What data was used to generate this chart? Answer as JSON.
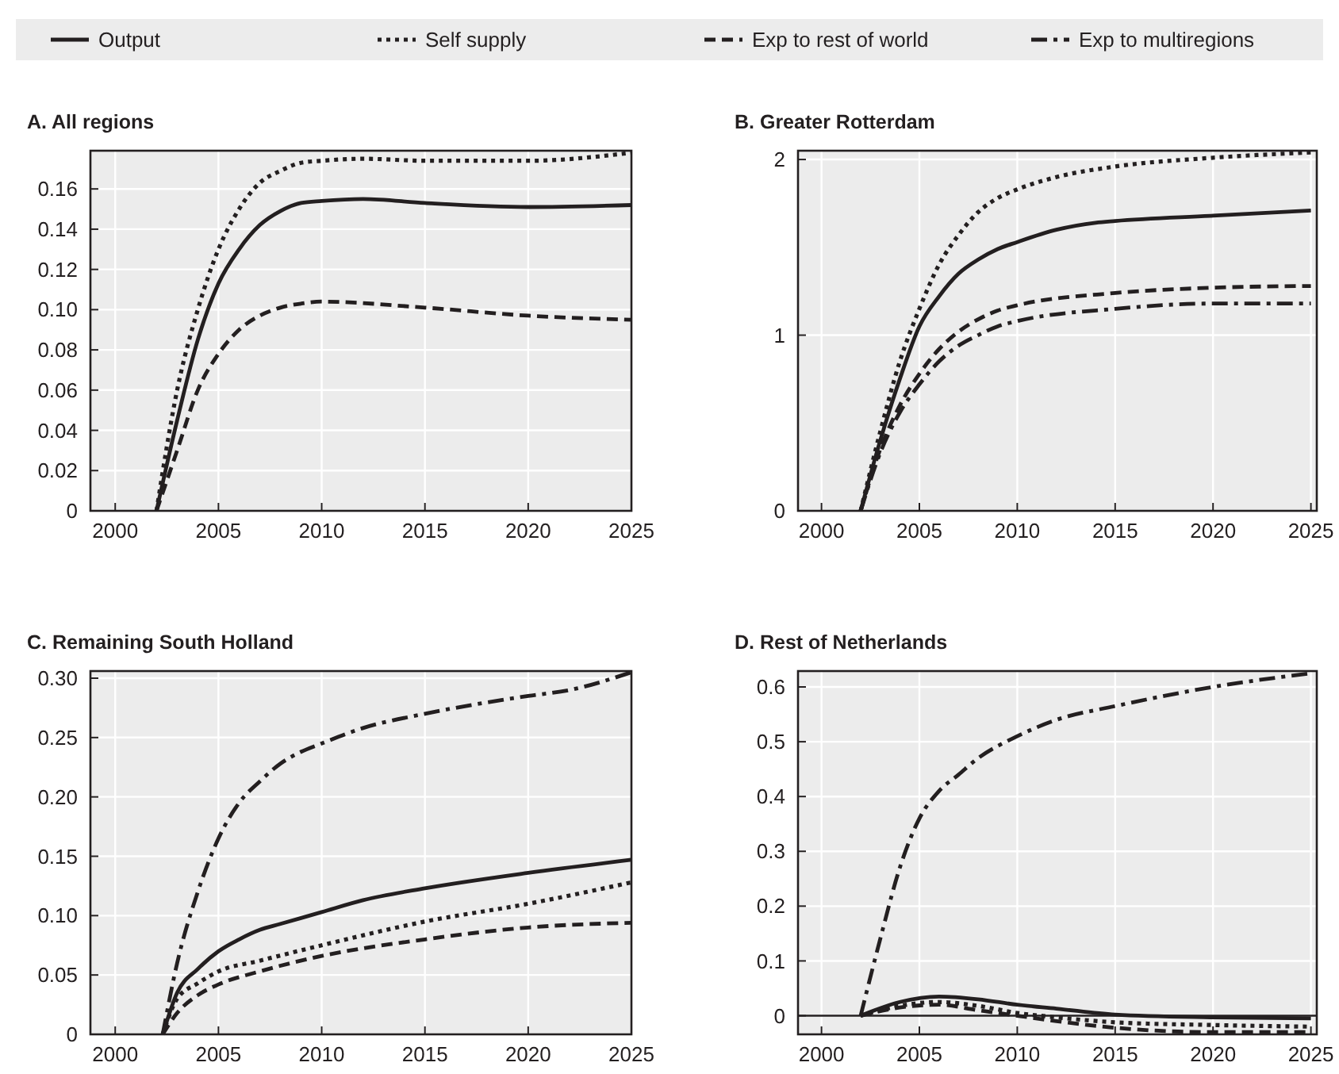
{
  "chart_data": [
    {
      "type": "line",
      "title": "A.   All regions",
      "xlim": [
        1998.8,
        2025
      ],
      "xticks": [
        2000,
        2005,
        2010,
        2015,
        2020,
        2025
      ],
      "ylim": [
        0,
        0.179
      ],
      "yticks": [
        {
          "value": 0,
          "label": "0"
        },
        {
          "value": 0.02,
          "label": "0.02"
        },
        {
          "value": 0.04,
          "label": "0.04"
        },
        {
          "value": 0.06,
          "label": "0.06"
        },
        {
          "value": 0.08,
          "label": "0.08"
        },
        {
          "value": 0.1,
          "label": "0.10"
        },
        {
          "value": 0.12,
          "label": "0.12"
        },
        {
          "value": 0.14,
          "label": "0.14"
        },
        {
          "value": 0.16,
          "label": "0.16"
        }
      ],
      "grid": true,
      "series": [
        {
          "color": "#231f20",
          "line_style": "solid",
          "x": [
            2002,
            2003,
            2004,
            2005,
            2006,
            2007,
            2008,
            2009,
            2010,
            2012,
            2015,
            2020,
            2025
          ],
          "values": [
            0,
            0.045,
            0.085,
            0.113,
            0.13,
            0.142,
            0.149,
            0.153,
            0.154,
            0.155,
            0.153,
            0.151,
            0.152
          ]
        },
        {
          "color": "#231f20",
          "line_style": "dotted",
          "x": [
            2002,
            2003,
            2004,
            2005,
            2006,
            2007,
            2008,
            2009,
            2010,
            2012,
            2015,
            2020,
            2025
          ],
          "values": [
            0,
            0.06,
            0.1,
            0.13,
            0.15,
            0.163,
            0.169,
            0.173,
            0.174,
            0.175,
            0.174,
            0.174,
            0.178
          ]
        },
        {
          "color": "#231f20",
          "line_style": "dashed",
          "x": [
            2002,
            2003,
            2004,
            2005,
            2006,
            2007,
            2008,
            2009,
            2010,
            2015,
            2020,
            2025
          ],
          "values": [
            0,
            0.03,
            0.06,
            0.078,
            0.09,
            0.097,
            0.101,
            0.103,
            0.104,
            0.101,
            0.097,
            0.095
          ]
        }
      ]
    },
    {
      "type": "line",
      "title": "B.   Greater Rotterdam",
      "xlim": [
        1998.8,
        2025.3
      ],
      "xticks": [
        2000,
        2005,
        2010,
        2015,
        2020,
        2025
      ],
      "ylim": [
        0,
        2.05
      ],
      "yticks": [
        0,
        1,
        2
      ],
      "grid": true,
      "legend": "top",
      "series": [
        {
          "name": "Output",
          "color": "#231f20",
          "line_style": "solid",
          "x": [
            2002,
            2003,
            2004,
            2005,
            2006,
            2007,
            2008,
            2009,
            2010,
            2012,
            2014,
            2015,
            2020,
            2025
          ],
          "values": [
            0,
            0.4,
            0.75,
            1.05,
            1.22,
            1.35,
            1.43,
            1.49,
            1.53,
            1.6,
            1.64,
            1.65,
            1.68,
            1.71
          ]
        },
        {
          "name": "Self supply",
          "color": "#231f20",
          "line_style": "dotted",
          "x": [
            2002,
            2003,
            2004,
            2005,
            2006,
            2007,
            2008,
            2009,
            2010,
            2012,
            2015,
            2020,
            2025
          ],
          "values": [
            0,
            0.45,
            0.85,
            1.15,
            1.4,
            1.57,
            1.7,
            1.78,
            1.83,
            1.9,
            1.96,
            2.01,
            2.04
          ]
        },
        {
          "name": "Exp to rest of world",
          "color": "#231f20",
          "line_style": "dashed",
          "x": [
            2002,
            2003,
            2004,
            2005,
            2006,
            2007,
            2008,
            2009,
            2010,
            2015,
            2020,
            2025
          ],
          "values": [
            0,
            0.35,
            0.6,
            0.78,
            0.92,
            1.02,
            1.09,
            1.14,
            1.17,
            1.24,
            1.27,
            1.28
          ]
        },
        {
          "name": "Exp to multiregions",
          "color": "#231f20",
          "line_style": "dashdot",
          "x": [
            2002,
            2003,
            2004,
            2005,
            2006,
            2007,
            2008,
            2009,
            2010,
            2015,
            2020,
            2025
          ],
          "values": [
            0,
            0.33,
            0.56,
            0.72,
            0.85,
            0.94,
            1.0,
            1.05,
            1.08,
            1.15,
            1.18,
            1.18
          ]
        }
      ]
    },
    {
      "type": "line",
      "title": "C.   Remaining South Holland",
      "xlim": [
        1998.8,
        2025
      ],
      "xticks": [
        2000,
        2005,
        2010,
        2015,
        2020,
        2025
      ],
      "ylim": [
        0,
        0.306
      ],
      "yticks": [
        {
          "value": 0,
          "label": "0"
        },
        {
          "value": 0.05,
          "label": "0.05"
        },
        {
          "value": 0.1,
          "label": "0.10"
        },
        {
          "value": 0.15,
          "label": "0.15"
        },
        {
          "value": 0.2,
          "label": "0.20"
        },
        {
          "value": 0.25,
          "label": "0.25"
        },
        {
          "value": 0.3,
          "label": "0.30"
        }
      ],
      "grid": true,
      "series": [
        {
          "color": "#231f20",
          "line_style": "solid",
          "x": [
            2002.3,
            2003,
            2004,
            2005,
            2006,
            2007,
            2008,
            2010,
            2012,
            2015,
            2020,
            2025
          ],
          "values": [
            0,
            0.035,
            0.055,
            0.07,
            0.08,
            0.088,
            0.093,
            0.103,
            0.113,
            0.123,
            0.136,
            0.147
          ]
        },
        {
          "color": "#231f20",
          "line_style": "dotted",
          "x": [
            2002.3,
            2003,
            2004,
            2005,
            2007,
            2010,
            2015,
            2020,
            2025
          ],
          "values": [
            0,
            0.03,
            0.043,
            0.053,
            0.062,
            0.075,
            0.095,
            0.11,
            0.128
          ]
        },
        {
          "color": "#231f20",
          "line_style": "dashed",
          "x": [
            2002.3,
            2003,
            2004,
            2005,
            2007,
            2010,
            2015,
            2020,
            2025
          ],
          "values": [
            0,
            0.018,
            0.033,
            0.042,
            0.053,
            0.066,
            0.08,
            0.09,
            0.094
          ]
        },
        {
          "color": "#231f20",
          "line_style": "dashdot",
          "x": [
            2002.3,
            2003,
            2004,
            2005,
            2006,
            2007,
            2008,
            2009,
            2010,
            2012,
            2015,
            2020,
            2022,
            2025
          ],
          "values": [
            0,
            0.06,
            0.12,
            0.165,
            0.195,
            0.213,
            0.228,
            0.238,
            0.245,
            0.258,
            0.27,
            0.285,
            0.29,
            0.305
          ]
        }
      ]
    },
    {
      "type": "line",
      "title": "D.   Rest of Netherlands",
      "xlim": [
        1998.8,
        2025.3
      ],
      "xticks": [
        2000,
        2005,
        2010,
        2015,
        2020,
        2025
      ],
      "ylim": [
        -0.034,
        0.629
      ],
      "yticks": [
        0,
        0.1,
        0.2,
        0.3,
        0.4,
        0.5,
        0.6
      ],
      "grid": true,
      "ref_lines": [
        {
          "axis": "y",
          "value": 0,
          "color": "#231f20"
        }
      ],
      "series": [
        {
          "color": "#231f20",
          "line_style": "solid",
          "x": [
            2002,
            2004,
            2006,
            2008,
            2010,
            2012,
            2015,
            2020,
            2025
          ],
          "values": [
            0,
            0.025,
            0.035,
            0.03,
            0.02,
            0.013,
            0.002,
            -0.003,
            -0.005
          ]
        },
        {
          "color": "#231f20",
          "line_style": "dotted",
          "x": [
            2002,
            2004,
            2006,
            2008,
            2010,
            2012,
            2015,
            2020,
            2025
          ],
          "values": [
            0,
            0.018,
            0.025,
            0.018,
            0.005,
            -0.003,
            -0.012,
            -0.017,
            -0.02
          ]
        },
        {
          "color": "#231f20",
          "line_style": "dashed",
          "x": [
            2002,
            2004,
            2006,
            2008,
            2010,
            2012,
            2015,
            2020,
            2025
          ],
          "values": [
            0,
            0.015,
            0.02,
            0.01,
            0,
            -0.01,
            -0.022,
            -0.03,
            -0.03
          ]
        },
        {
          "color": "#231f20",
          "line_style": "dashdot",
          "x": [
            2002,
            2003,
            2004,
            2005,
            2006,
            2007,
            2008,
            2010,
            2012,
            2015,
            2020,
            2025
          ],
          "values": [
            0,
            0.14,
            0.27,
            0.36,
            0.41,
            0.44,
            0.47,
            0.51,
            0.54,
            0.565,
            0.6,
            0.625
          ]
        }
      ]
    }
  ]
}
